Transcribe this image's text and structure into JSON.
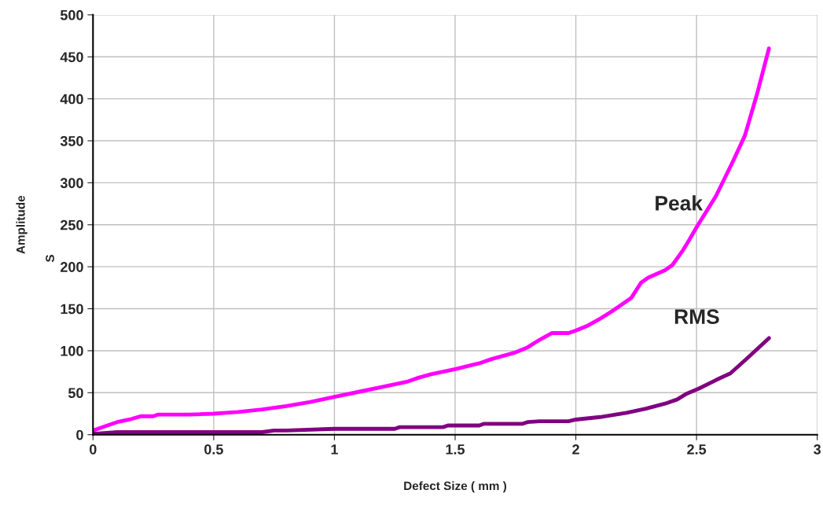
{
  "chart_data": {
    "type": "line",
    "xlabel": "Defect Size ( mm )",
    "ylabel": "Amplitude",
    "xlim": [
      0,
      3
    ],
    "xticks": [
      0,
      0.5,
      1,
      1.5,
      2,
      2.5,
      3
    ],
    "ylim": [
      0,
      500
    ],
    "yticks": [
      0,
      50,
      100,
      150,
      200,
      250,
      300,
      350,
      400,
      450,
      500
    ],
    "grid": true,
    "legend": false,
    "marker": "none",
    "line_style": "solid",
    "series": [
      {
        "name": "Peak",
        "color": "#ff00ff",
        "x": [
          0,
          0.05,
          0.1,
          0.15,
          0.2,
          0.25,
          0.27,
          0.4,
          0.5,
          0.55,
          0.6,
          0.7,
          0.8,
          0.9,
          1.0,
          1.1,
          1.2,
          1.25,
          1.3,
          1.35,
          1.4,
          1.5,
          1.6,
          1.65,
          1.75,
          1.8,
          1.85,
          1.9,
          1.97,
          2.0,
          2.05,
          2.1,
          2.15,
          2.23,
          2.27,
          2.3,
          2.37,
          2.4,
          2.44,
          2.47,
          2.5,
          2.58,
          2.65,
          2.7,
          2.75,
          2.8
        ],
        "values": [
          5,
          10,
          15,
          18,
          22,
          22,
          24,
          24,
          25,
          26,
          27,
          30,
          34,
          39,
          45,
          51,
          57,
          60,
          63,
          68,
          72,
          78,
          85,
          90,
          98,
          104,
          113,
          121,
          121,
          124,
          130,
          138,
          147,
          163,
          181,
          187,
          196,
          202,
          218,
          232,
          247,
          284,
          325,
          356,
          405,
          460
        ]
      },
      {
        "name": "RMS",
        "color": "#800080",
        "x": [
          0,
          0.1,
          0.7,
          0.75,
          0.8,
          1.0,
          1.25,
          1.27,
          1.45,
          1.47,
          1.6,
          1.62,
          1.78,
          1.8,
          1.85,
          1.97,
          2.0,
          2.1,
          2.21,
          2.29,
          2.37,
          2.42,
          2.46,
          2.51,
          2.58,
          2.64,
          2.71,
          2.8
        ],
        "values": [
          1,
          3,
          3,
          5,
          5,
          7,
          7,
          9,
          9,
          11,
          11,
          13,
          13,
          15,
          16,
          16,
          18,
          21,
          26,
          31,
          37,
          42,
          49,
          55,
          65,
          73,
          91,
          115
        ]
      }
    ],
    "annotations": [
      "S"
    ]
  }
}
